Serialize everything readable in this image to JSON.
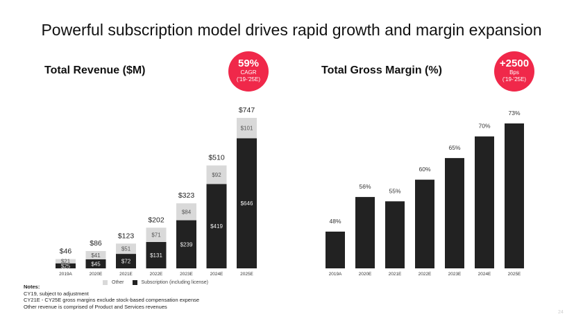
{
  "page": {
    "title": "Powerful subscription model drives rapid growth and margin expansion",
    "page_number": "24"
  },
  "colors": {
    "accent": "#f0284a",
    "subscription": "#222222",
    "other": "#d9d9d9"
  },
  "badges": {
    "revenue": {
      "value": "59%",
      "line1": "CAGR",
      "line2": "('19-'25E)"
    },
    "margin": {
      "value": "+2500",
      "line1": "Bps",
      "line2": "('19-'25E)"
    }
  },
  "legend": {
    "other": "Other",
    "subscription": "Subscription (including license)"
  },
  "notes": {
    "heading": "Notes:",
    "lines": [
      "CY19, subject to adjustment",
      "CY21E - CY25E gross margins exclude stock-based compensation expense",
      "Other revenue is comprised of Product and Services revenues"
    ]
  },
  "chart_data": [
    {
      "type": "bar",
      "stacked": true,
      "title": "Total Revenue ($M)",
      "categories": [
        "2019A",
        "2020E",
        "2021E",
        "2022E",
        "2023E",
        "2024E",
        "2025E"
      ],
      "series": [
        {
          "name": "Subscription (including license)",
          "values": [
            25,
            45,
            72,
            131,
            239,
            419,
            646
          ],
          "labels": [
            "$25",
            "$45",
            "$72",
            "$131",
            "$239",
            "$419",
            "$646"
          ]
        },
        {
          "name": "Other",
          "values": [
            21,
            41,
            51,
            71,
            84,
            92,
            101
          ],
          "labels": [
            "$21",
            "$41",
            "$51",
            "$71",
            "$84",
            "$92",
            "$101"
          ]
        }
      ],
      "totals": [
        46,
        86,
        123,
        202,
        323,
        510,
        747
      ],
      "total_labels": [
        "$46",
        "$86",
        "$123",
        "$202",
        "$323",
        "$510",
        "$747"
      ],
      "ylim": [
        0,
        800
      ],
      "grid": false,
      "legend": "bottom"
    },
    {
      "type": "bar",
      "title": "Total Gross Margin (%)",
      "categories": [
        "2019A",
        "2020E",
        "2021E",
        "2022E",
        "2023E",
        "2024E",
        "2025E"
      ],
      "values": [
        48,
        56,
        55,
        60,
        65,
        70,
        73
      ],
      "labels": [
        "48%",
        "56%",
        "55%",
        "60%",
        "65%",
        "70%",
        "73%"
      ],
      "ylim": [
        0,
        80
      ],
      "grid": false
    }
  ]
}
